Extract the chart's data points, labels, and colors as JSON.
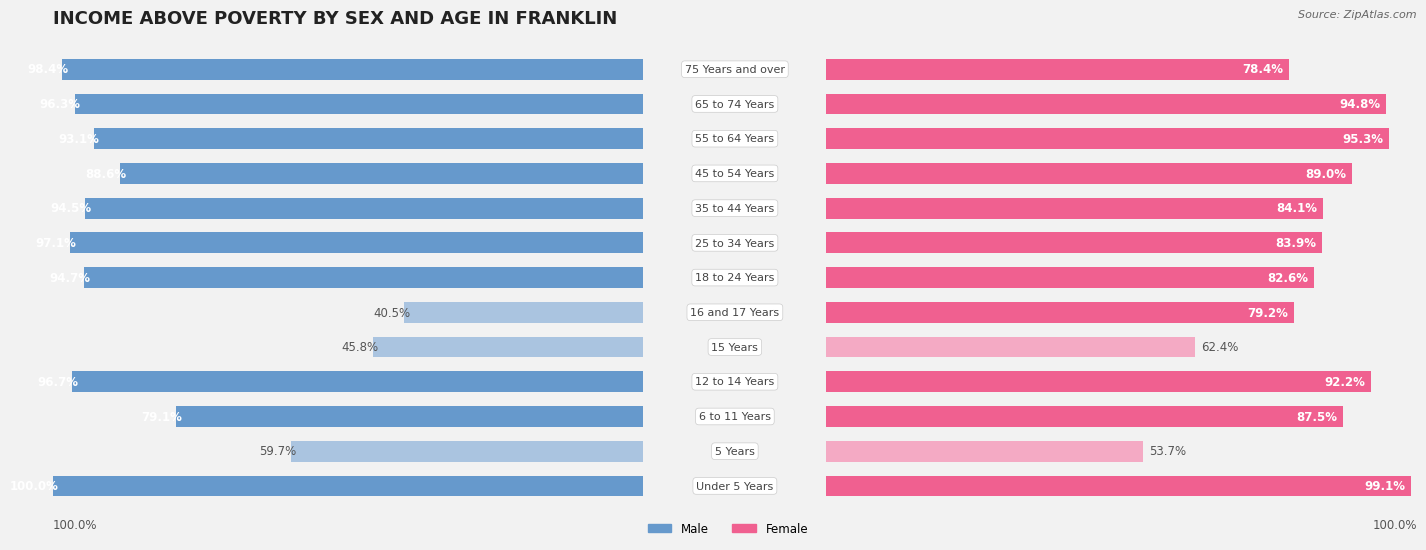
{
  "title": "INCOME ABOVE POVERTY BY SEX AND AGE IN FRANKLIN",
  "source": "Source: ZipAtlas.com",
  "categories": [
    "Under 5 Years",
    "5 Years",
    "6 to 11 Years",
    "12 to 14 Years",
    "15 Years",
    "16 and 17 Years",
    "18 to 24 Years",
    "25 to 34 Years",
    "35 to 44 Years",
    "45 to 54 Years",
    "55 to 64 Years",
    "65 to 74 Years",
    "75 Years and over"
  ],
  "male": [
    100.0,
    59.7,
    79.1,
    96.7,
    45.8,
    40.5,
    94.7,
    97.1,
    94.5,
    88.6,
    93.1,
    96.3,
    98.4
  ],
  "female": [
    99.1,
    53.7,
    87.5,
    92.2,
    62.4,
    79.2,
    82.6,
    83.9,
    84.1,
    89.0,
    95.3,
    94.8,
    78.4
  ],
  "male_color_dark": "#6699cc",
  "male_color_light": "#aac4e0",
  "female_color_dark": "#f06090",
  "female_color_light": "#f4aac4",
  "bar_height": 0.6,
  "background_color": "#f2f2f2",
  "row_colors": [
    "#ffffff",
    "#e8e8e8"
  ],
  "title_fontsize": 13,
  "label_fontsize": 8.5,
  "source_fontsize": 8,
  "x_max": 100,
  "male_threshold": 70,
  "female_threshold": 70
}
